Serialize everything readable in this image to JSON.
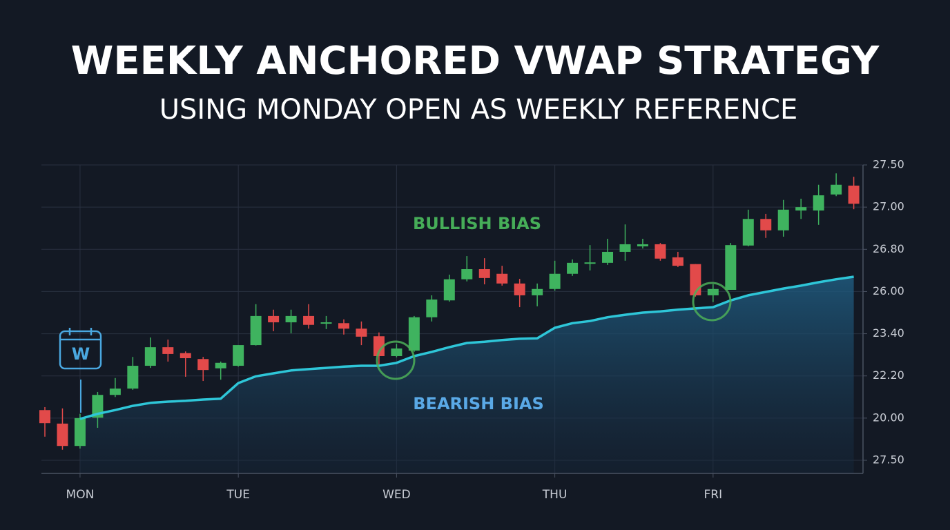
{
  "chart_data": {
    "type": "candlestick",
    "title": "WEEKLY ANCHORED VWAP STRATEGY",
    "subtitle": "USING MONDAY OPEN AS WEEKLY REFERENCE",
    "annotations": [
      "BULLISH BIAS",
      "BEARISH BIAS"
    ],
    "icon_label": "W",
    "categories": [
      null,
      null,
      "MON",
      null,
      null,
      null,
      null,
      null,
      null,
      null,
      null,
      "TUE",
      null,
      null,
      null,
      null,
      null,
      null,
      null,
      null,
      "WED",
      null,
      null,
      null,
      null,
      null,
      null,
      null,
      null,
      "THU",
      null,
      null,
      null,
      null,
      null,
      null,
      null,
      null,
      "FRI",
      null,
      null,
      null,
      null,
      null,
      null,
      null,
      null
    ],
    "open": [
      1.19,
      0.87,
      0.34,
      1.01,
      1.55,
      1.7,
      2.24,
      2.68,
      2.54,
      2.4,
      2.18,
      2.24,
      2.73,
      3.42,
      3.27,
      3.42,
      3.24,
      3.25,
      3.12,
      2.94,
      2.47,
      2.6,
      3.39,
      3.79,
      4.29,
      4.53,
      4.42,
      4.19,
      3.91,
      4.06,
      4.42,
      4.66,
      4.68,
      4.94,
      5.07,
      5.12,
      4.81,
      4.65,
      3.91,
      4.04,
      5.09,
      5.72,
      5.45,
      5.92,
      5.92,
      6.3,
      6.51
    ],
    "high": [
      1.26,
      1.23,
      1.1,
      1.62,
      1.95,
      2.45,
      2.91,
      2.86,
      2.58,
      2.45,
      2.34,
      2.73,
      3.7,
      3.57,
      3.57,
      3.7,
      3.42,
      3.34,
      3.29,
      3.03,
      2.76,
      3.42,
      3.91,
      4.4,
      4.84,
      4.79,
      4.61,
      4.3,
      4.19,
      4.73,
      4.76,
      5.1,
      5.25,
      5.59,
      5.25,
      5.15,
      4.94,
      4.65,
      4.17,
      5.15,
      5.94,
      5.84,
      6.17,
      6.2,
      6.53,
      6.8,
      6.72
    ],
    "low": [
      0.56,
      0.25,
      0.28,
      0.77,
      1.5,
      1.67,
      2.19,
      2.34,
      1.98,
      1.88,
      1.91,
      2.22,
      2.72,
      3.06,
      3.01,
      3.12,
      3.11,
      2.98,
      2.73,
      2.27,
      2.44,
      2.57,
      3.29,
      3.76,
      4.24,
      4.17,
      4.14,
      3.63,
      3.65,
      4.02,
      4.37,
      4.5,
      4.63,
      4.73,
      5.02,
      4.73,
      4.58,
      3.88,
      3.75,
      4.04,
      5.07,
      5.27,
      5.3,
      5.72,
      5.58,
      6.26,
      5.95
    ],
    "close": [
      0.88,
      0.34,
      1.0,
      1.55,
      1.7,
      2.24,
      2.68,
      2.52,
      2.42,
      2.14,
      2.31,
      2.73,
      3.42,
      3.27,
      3.42,
      3.21,
      3.27,
      3.12,
      2.93,
      2.47,
      2.65,
      3.39,
      3.81,
      4.29,
      4.53,
      4.32,
      4.19,
      3.91,
      4.06,
      4.42,
      4.68,
      4.69,
      4.94,
      5.12,
      5.12,
      4.78,
      4.61,
      3.91,
      4.06,
      5.1,
      5.72,
      5.45,
      5.94,
      6.0,
      6.28,
      6.53,
      6.08
    ],
    "up_color": "#3fb35f",
    "down_color": "#e24a4a",
    "vwap": {
      "color": "#2ec6d8",
      "values": [
        null,
        null,
        0.98,
        1.1,
        1.19,
        1.29,
        1.36,
        1.39,
        1.41,
        1.44,
        1.46,
        1.83,
        1.99,
        2.06,
        2.13,
        2.16,
        2.19,
        2.22,
        2.24,
        2.24,
        2.31,
        2.47,
        2.57,
        2.68,
        2.78,
        2.81,
        2.85,
        2.88,
        2.89,
        3.14,
        3.25,
        3.3,
        3.39,
        3.45,
        3.5,
        3.53,
        3.57,
        3.6,
        3.63,
        3.79,
        3.91,
        3.99,
        4.07,
        4.14,
        4.22,
        4.29,
        4.35
      ]
    },
    "ylim": [
      0,
      7
    ],
    "yticks": [
      {
        "value": 0,
        "label": "27.50"
      },
      {
        "value": 1,
        "label": "20.00"
      },
      {
        "value": 2,
        "label": "22.20"
      },
      {
        "value": 3,
        "label": "23.40"
      },
      {
        "value": 4,
        "label": "26.00"
      },
      {
        "value": 5,
        "label": "26.80"
      },
      {
        "value": 6,
        "label": "27.00"
      },
      {
        "value": 7,
        "label": "27.50"
      }
    ],
    "grid": true
  }
}
